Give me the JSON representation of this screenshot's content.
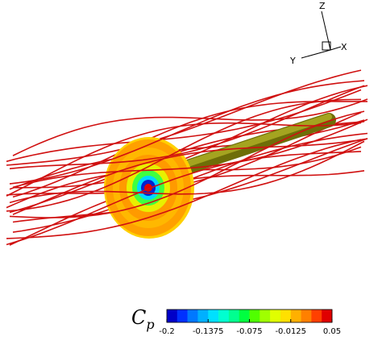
{
  "triad": {
    "z": "Z",
    "y": "Y",
    "x": "X"
  },
  "colorbar": {
    "title": "C",
    "title_subscript": "p",
    "lim": [
      -0.2,
      0.05
    ],
    "ticks": [
      -0.2,
      -0.1375,
      -0.075,
      -0.0125,
      0.05
    ],
    "colors": [
      "#0000c8",
      "#0030ff",
      "#0078ff",
      "#00b0ff",
      "#00e0ff",
      "#00ffd0",
      "#00ff90",
      "#00ff40",
      "#50ff00",
      "#a0ff00",
      "#e0ff00",
      "#ffe000",
      "#ffb000",
      "#ff8000",
      "#ff4000",
      "#e00000"
    ]
  }
}
